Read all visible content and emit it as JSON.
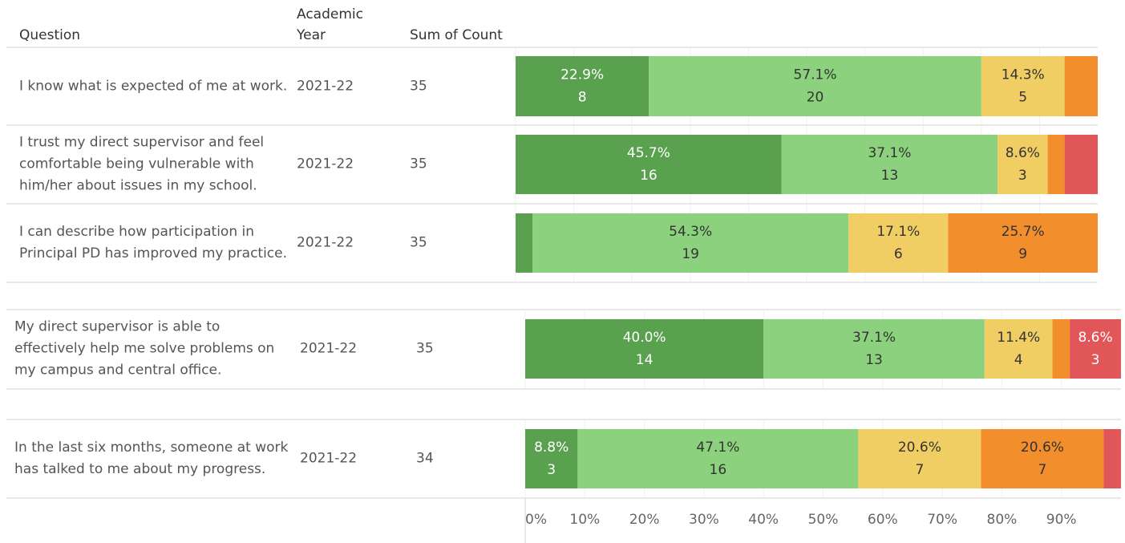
{
  "chart_data": {
    "type": "bar",
    "orientation": "horizontal",
    "stacked": true,
    "headers": {
      "question": "Question",
      "year": "Academic Year",
      "count": "Sum of Count"
    },
    "categories": [
      "I know what is expected of me at work.",
      "I trust my direct supervisor and feel comfortable being vulnerable with him/her about issues in my school.",
      "I can describe how participation in Principal PD has improved my practice.",
      "My direct supervisor is able to effectively help me solve problems on my campus and central office.",
      "In the last six months, someone at work has talked to me about my progress."
    ],
    "years": [
      "2021-22",
      "2021-22",
      "2021-22",
      "2021-22",
      "2021-22"
    ],
    "sum_of_count": [
      35,
      35,
      35,
      35,
      34
    ],
    "series": [
      {
        "color": "#59a14f",
        "values": [
          22.9,
          45.7,
          2.9,
          40.0,
          8.8
        ],
        "value_labels": [
          "22.9%",
          "45.7%",
          null,
          "40.0%",
          "8.8%"
        ],
        "counts": [
          8,
          16,
          null,
          14,
          3
        ]
      },
      {
        "color": "#8cd17d",
        "values": [
          57.1,
          37.1,
          54.3,
          37.1,
          47.1
        ],
        "value_labels": [
          "57.1%",
          "37.1%",
          "54.3%",
          "37.1%",
          "47.1%"
        ],
        "counts": [
          20,
          13,
          19,
          13,
          16
        ]
      },
      {
        "color": "#f1ce63",
        "values": [
          14.3,
          8.6,
          17.1,
          11.4,
          20.6
        ],
        "value_labels": [
          "14.3%",
          "8.6%",
          "17.1%",
          "11.4%",
          "20.6%"
        ],
        "counts": [
          5,
          3,
          6,
          4,
          7
        ]
      },
      {
        "color": "#f28e2b",
        "values": [
          5.7,
          2.9,
          25.7,
          2.9,
          20.6
        ],
        "value_labels": [
          null,
          null,
          "25.7%",
          null,
          "20.6%"
        ],
        "counts": [
          null,
          null,
          9,
          null,
          7
        ]
      },
      {
        "color": "#e15759",
        "values": [
          0,
          5.7,
          0,
          8.6,
          2.9
        ],
        "value_labels": [
          null,
          null,
          null,
          "8.6%",
          null
        ],
        "counts": [
          null,
          null,
          null,
          3,
          null
        ]
      }
    ],
    "xlim": [
      0,
      100
    ],
    "xticks": [
      {
        "value": 0,
        "label": "0%"
      },
      {
        "value": 10,
        "label": "10%"
      },
      {
        "value": 20,
        "label": "20%"
      },
      {
        "value": 30,
        "label": "30%"
      },
      {
        "value": 40,
        "label": "40%"
      },
      {
        "value": 50,
        "label": "50%"
      },
      {
        "value": 60,
        "label": "60%"
      },
      {
        "value": 70,
        "label": "70%"
      },
      {
        "value": 80,
        "label": "80%"
      },
      {
        "value": 90,
        "label": "90%"
      }
    ],
    "grid": true
  }
}
